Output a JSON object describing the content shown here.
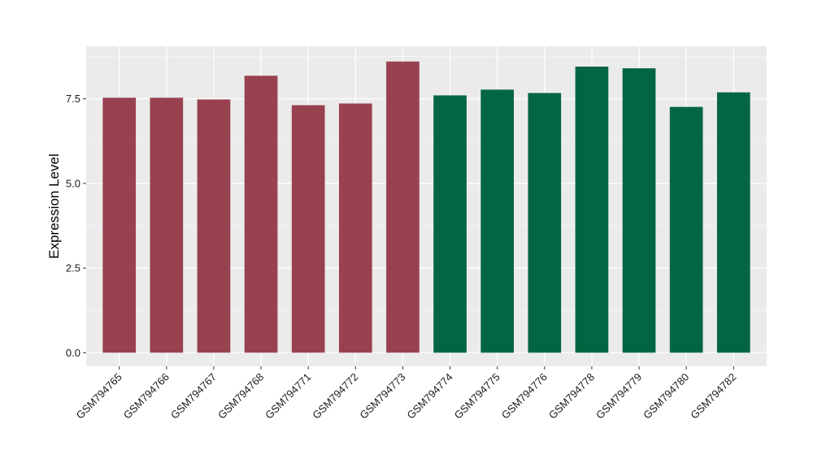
{
  "chart_data": {
    "type": "bar",
    "title": "",
    "xlabel": "",
    "ylabel": "Expression Level",
    "categories": [
      "GSM794765",
      "GSM794766",
      "GSM794767",
      "GSM794768",
      "GSM794771",
      "GSM794772",
      "GSM794773",
      "GSM794774",
      "GSM794775",
      "GSM794776",
      "GSM794778",
      "GSM794779",
      "GSM794780",
      "GSM794782"
    ],
    "values": [
      7.53,
      7.53,
      7.48,
      8.18,
      7.31,
      7.36,
      8.6,
      7.6,
      7.77,
      7.67,
      8.45,
      8.4,
      7.26,
      7.69
    ],
    "bar_groups": [
      0,
      0,
      0,
      0,
      0,
      0,
      0,
      1,
      1,
      1,
      1,
      1,
      1,
      1
    ],
    "group_colors": [
      "#98414F",
      "#036643"
    ],
    "ylim": [
      -0.4,
      9.05
    ],
    "yticks": [
      0,
      2.5,
      5,
      7.5
    ],
    "ytick_labels": [
      "0.0",
      "2.5",
      "5.0",
      "7.5"
    ],
    "grid": true,
    "panel_background": "#EBEBEB",
    "legend": "none"
  }
}
